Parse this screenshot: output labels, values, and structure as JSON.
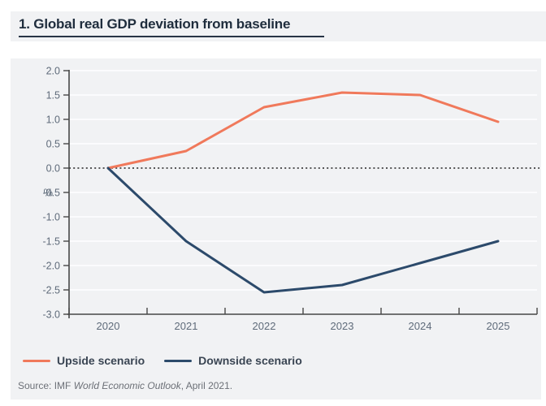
{
  "header": {
    "title": "1. Global real GDP deviation from baseline"
  },
  "chart_data": {
    "type": "line",
    "title": "1. Global real GDP deviation from baseline",
    "x": [
      "2020",
      "2021",
      "2022",
      "2023",
      "2024",
      "2025"
    ],
    "series": [
      {
        "name": "Upside scenario",
        "color": "#f0795b",
        "values": [
          0.0,
          0.35,
          1.25,
          1.55,
          1.5,
          0.95
        ]
      },
      {
        "name": "Downside scenario",
        "color": "#2c4a6b",
        "values": [
          0.0,
          -1.5,
          -2.55,
          -2.4,
          -1.95,
          -1.5
        ]
      }
    ],
    "xlabel": "",
    "ylabel": "%",
    "ylim": [
      -3.0,
      2.0
    ],
    "yticks": [
      2.0,
      1.5,
      1.0,
      0.5,
      0.0,
      -0.5,
      -1.0,
      -1.5,
      -2.0,
      -2.5,
      -3.0
    ],
    "baseline_value": 0.0,
    "baseline_style": "dotted",
    "grid": true,
    "legend_position": "bottom-left"
  },
  "source": {
    "prefix": "Source: IMF ",
    "italic": "World Economic Outlook",
    "suffix": ", April 2021."
  },
  "colors": {
    "panel_bg": "#f1f2f4",
    "grid_line": "#fbfbfd",
    "axis": "#474747",
    "tick_label": "#5f6b7a",
    "baseline": "#3f3f3f",
    "title_text": "#1f2d3d",
    "legend_text": "#3a4553"
  }
}
